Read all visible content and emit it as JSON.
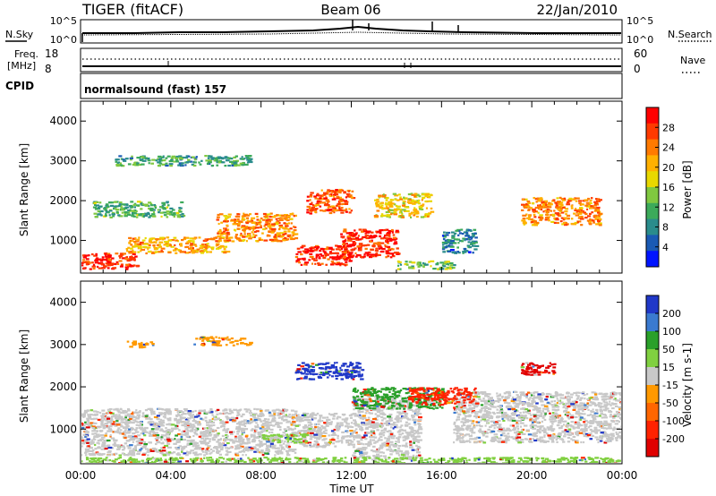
{
  "header": {
    "radar": "TIGER (fitACF)",
    "beam": "Beam 06",
    "date": "22/Jan/2010"
  },
  "strip": {
    "nsky_label": "N.Sky",
    "nsky_ticks": [
      "10^5",
      "10^0"
    ],
    "nsearch_label": "N.Search",
    "nsearch_ticks": [
      "10^5",
      "10^0"
    ],
    "freq_label": "Freq.",
    "freq_unit": "[MHz]",
    "freq_ticks": [
      "18",
      "8"
    ],
    "nave_label": "Nave",
    "nave_ticks": [
      "60",
      "0"
    ],
    "cpid_label": "CPID",
    "cpid_value": "normalsound (fast) 157"
  },
  "chart_data": [
    {
      "type": "heatmap",
      "name": "power-panel",
      "ylabel": "Slant Range [km]",
      "xlabel": "",
      "y_ticks": [
        1000,
        2000,
        3000,
        4000
      ],
      "ylim": [
        180,
        4500
      ],
      "xlim": [
        0,
        24
      ],
      "colorbar": {
        "label": "Power [dB]",
        "ticks": [
          "28",
          "24",
          "20",
          "16",
          "12",
          "8",
          "4"
        ],
        "colors": [
          "#ff0000",
          "#ff3a00",
          "#ff7a00",
          "#ffb000",
          "#e8d800",
          "#80c840",
          "#3caa5a",
          "#2a8c8c",
          "#1a5ab4",
          "#0014ff"
        ]
      },
      "regions": [
        {
          "x": [
            0.0,
            2.5
          ],
          "y": [
            300,
            700
          ],
          "level": 0.95
        },
        {
          "x": [
            2.0,
            6.5
          ],
          "y": [
            700,
            1100
          ],
          "level": 0.7
        },
        {
          "x": [
            6.0,
            9.5
          ],
          "y": [
            1000,
            1700
          ],
          "level": 0.75
        },
        {
          "x": [
            9.5,
            12.0
          ],
          "y": [
            400,
            900
          ],
          "level": 0.95
        },
        {
          "x": [
            11.5,
            14.0
          ],
          "y": [
            600,
            1300
          ],
          "level": 0.95
        },
        {
          "x": [
            10.0,
            12.0
          ],
          "y": [
            1700,
            2300
          ],
          "level": 0.85
        },
        {
          "x": [
            13.0,
            15.5
          ],
          "y": [
            1600,
            2200
          ],
          "level": 0.6
        },
        {
          "x": [
            19.5,
            23.0
          ],
          "y": [
            1400,
            2100
          ],
          "level": 0.75
        },
        {
          "x": [
            0.5,
            4.5
          ],
          "y": [
            1600,
            2000
          ],
          "level": 0.35
        },
        {
          "x": [
            1.5,
            7.5
          ],
          "y": [
            2900,
            3150
          ],
          "level": 0.3
        },
        {
          "x": [
            14.0,
            16.5
          ],
          "y": [
            300,
            500
          ],
          "level": 0.4
        },
        {
          "x": [
            16.0,
            17.5
          ],
          "y": [
            700,
            1300
          ],
          "level": 0.2
        }
      ]
    },
    {
      "type": "heatmap",
      "name": "velocity-panel",
      "ylabel": "Slant Range [km]",
      "xlabel": "Time UT",
      "y_ticks": [
        1000,
        2000,
        3000,
        4000
      ],
      "ylim": [
        180,
        4500
      ],
      "xlim": [
        0,
        24
      ],
      "x_tick_labels": [
        "00:00",
        "04:00",
        "08:00",
        "12:00",
        "16:00",
        "20:00",
        "00:00"
      ],
      "colorbar": {
        "label": "Velocity [m s-1]",
        "ticks": [
          "200",
          "100",
          "50",
          "15",
          "-15",
          "-50",
          "-100",
          "-200"
        ],
        "colors": [
          "#2038c8",
          "#3a7ad0",
          "#2aa02a",
          "#80d040",
          "#c8c8c8",
          "#ff9900",
          "#ff6600",
          "#ff2200",
          "#e00000"
        ]
      },
      "regions": [
        {
          "x": [
            0.0,
            9.5
          ],
          "y": [
            400,
            1500
          ],
          "color": "#c8c8c8"
        },
        {
          "x": [
            9.5,
            12.0
          ],
          "y": [
            600,
            1400
          ],
          "color": "#c8c8c8"
        },
        {
          "x": [
            12.0,
            15.0
          ],
          "y": [
            300,
            1800
          ],
          "color": "#c8c8c8"
        },
        {
          "x": [
            16.5,
            24.0
          ],
          "y": [
            700,
            1900
          ],
          "color": "#c8c8c8"
        },
        {
          "x": [
            9.5,
            12.5
          ],
          "y": [
            2200,
            2600
          ],
          "color": "#2038c8"
        },
        {
          "x": [
            12.0,
            16.0
          ],
          "y": [
            1500,
            2000
          ],
          "color": "#2aa02a"
        },
        {
          "x": [
            14.5,
            17.5
          ],
          "y": [
            1600,
            2000
          ],
          "color": "#ff2200"
        },
        {
          "x": [
            19.5,
            21.0
          ],
          "y": [
            2300,
            2600
          ],
          "color": "#e00000"
        },
        {
          "x": [
            2.0,
            3.2
          ],
          "y": [
            2950,
            3100
          ],
          "color": "#ff9900"
        },
        {
          "x": [
            5.0,
            7.5
          ],
          "y": [
            3000,
            3200
          ],
          "color": "#ff9900"
        },
        {
          "x": [
            8.0,
            10.0
          ],
          "y": [
            700,
            900
          ],
          "color": "#80d040"
        },
        {
          "x": [
            0.0,
            24.0
          ],
          "y": [
            200,
            350
          ],
          "color": "#80d040"
        }
      ]
    }
  ]
}
